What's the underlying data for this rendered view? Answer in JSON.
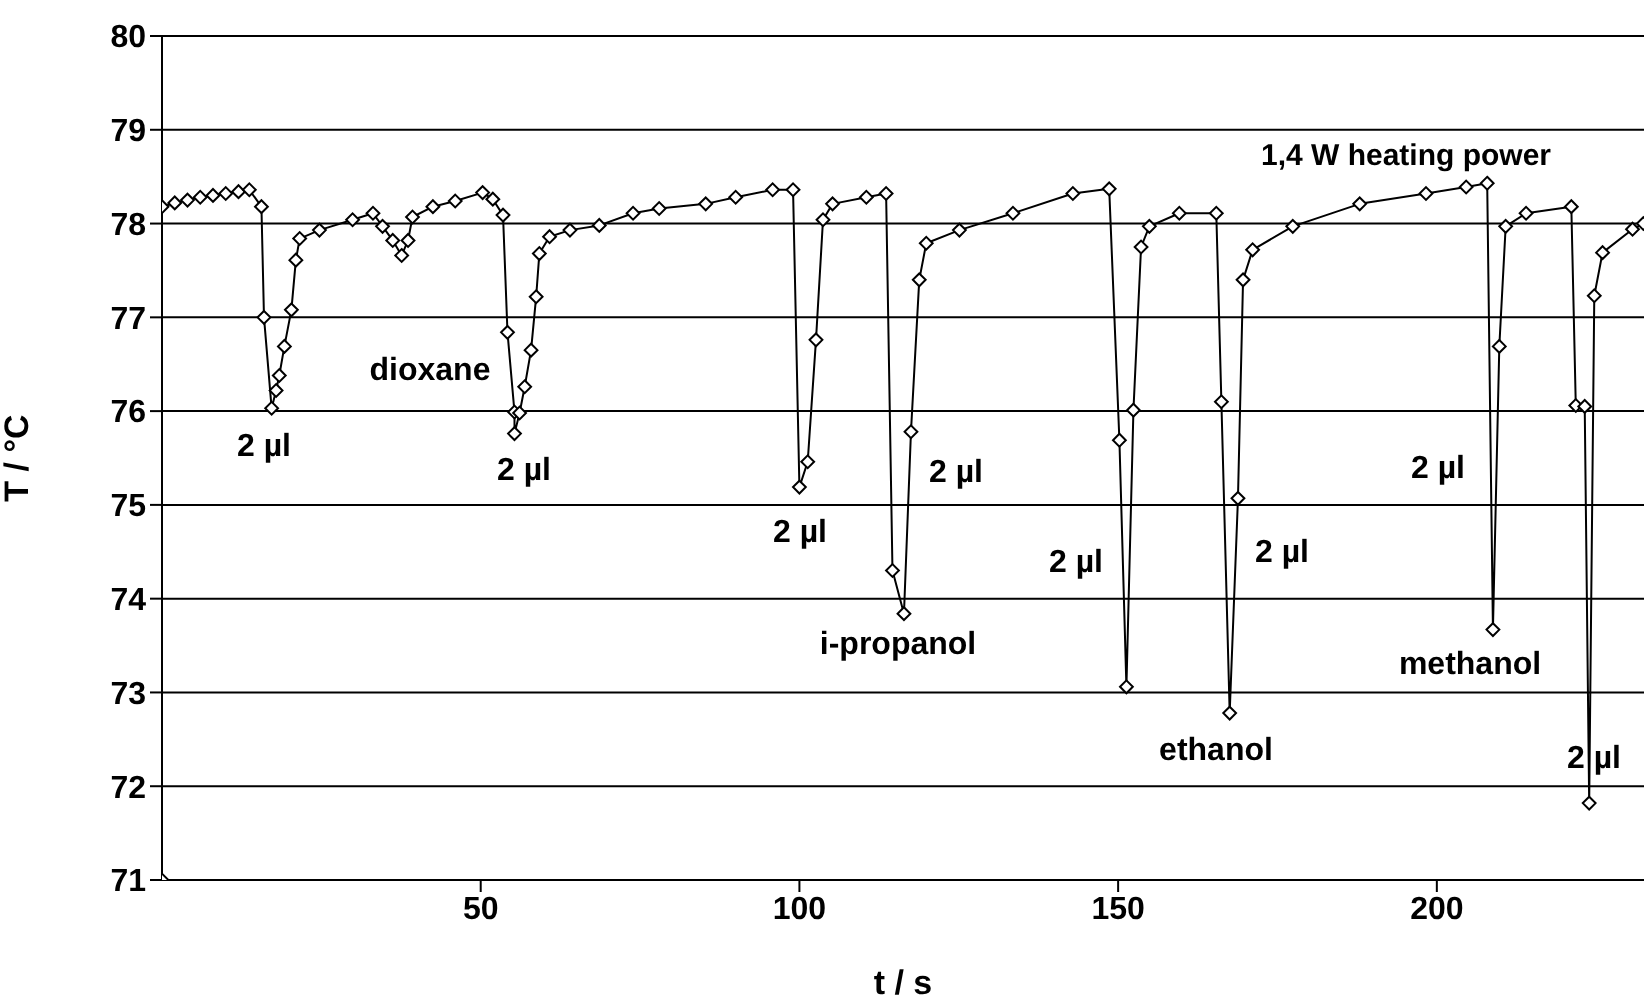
{
  "chart_data": {
    "type": "line",
    "xlabel": "t / s",
    "ylabel": "T / °C",
    "xlim": [
      0,
      232.5
    ],
    "xticks": [
      50,
      100,
      150,
      200
    ],
    "ylim": [
      71,
      80
    ],
    "yticks": [
      71,
      72,
      73,
      74,
      75,
      76,
      77,
      78,
      79,
      80
    ],
    "grid": "y",
    "marker": "diamond",
    "line_style": "solid",
    "annotations": [
      "1,4 W heating power",
      "dioxane",
      "2 µl",
      "2 µl",
      "2 µl",
      "2 µl",
      "i-propanol",
      "2 µl",
      "2 µl",
      "ethanol",
      "2 µl",
      "methanol",
      "2 µl"
    ],
    "series": [
      {
        "color": "#000000",
        "x": [
          0,
          0,
          2,
          4,
          6,
          8,
          10,
          12,
          13.7,
          15.6,
          16,
          17.2,
          17.9,
          18.4,
          19.2,
          20.3,
          21,
          21.6,
          24.7,
          29.9,
          33.1,
          34.6,
          36.2,
          37.6,
          38.6,
          39.3,
          42.5,
          46,
          50.3,
          51.9,
          53.5,
          54.2,
          55.3,
          55.3,
          56.1,
          56.9,
          57.9,
          58.7,
          59.2,
          60.8,
          64,
          68.6,
          73.9,
          78,
          85.3,
          90,
          95.8,
          99,
          100,
          101.3,
          102.6,
          103.7,
          105.2,
          110.5,
          113.6,
          114.6,
          116.4,
          117.5,
          118.8,
          119.9,
          125.1,
          133.5,
          142.9,
          148.6,
          150.2,
          151.3,
          152.4,
          153.6,
          154.9,
          159.6,
          165.4,
          166.2,
          167.5,
          168.8,
          169.6,
          171.1,
          177.4,
          187.9,
          198.3,
          204.6,
          207.9,
          208.8,
          209.8,
          210.8,
          214,
          221.1,
          221.8,
          223.2,
          223.9,
          224.7,
          226,
          230.7,
          232.4
        ],
        "values": [
          71,
          78.18,
          78.22,
          78.25,
          78.28,
          78.3,
          78.32,
          78.34,
          78.36,
          78.18,
          77,
          76.03,
          76.22,
          76.38,
          76.69,
          77.08,
          77.61,
          77.84,
          77.93,
          78.04,
          78.11,
          77.97,
          77.82,
          77.66,
          77.82,
          78.07,
          78.18,
          78.24,
          78.33,
          78.26,
          78.09,
          76.84,
          75.99,
          75.76,
          75.98,
          76.26,
          76.65,
          77.22,
          77.68,
          77.86,
          77.93,
          77.98,
          78.11,
          78.16,
          78.21,
          78.28,
          78.36,
          78.36,
          75.19,
          75.46,
          76.76,
          78.04,
          78.21,
          78.28,
          78.32,
          74.3,
          73.84,
          75.78,
          77.4,
          77.79,
          77.93,
          78.11,
          78.32,
          78.37,
          75.69,
          73.06,
          76.01,
          77.75,
          77.97,
          78.11,
          78.11,
          76.1,
          72.78,
          75.07,
          77.4,
          77.72,
          77.97,
          78.21,
          78.32,
          78.39,
          78.43,
          73.67,
          76.69,
          77.97,
          78.11,
          78.18,
          76.06,
          76.05,
          71.82,
          77.23,
          77.69,
          77.94,
          78
        ]
      }
    ]
  }
}
